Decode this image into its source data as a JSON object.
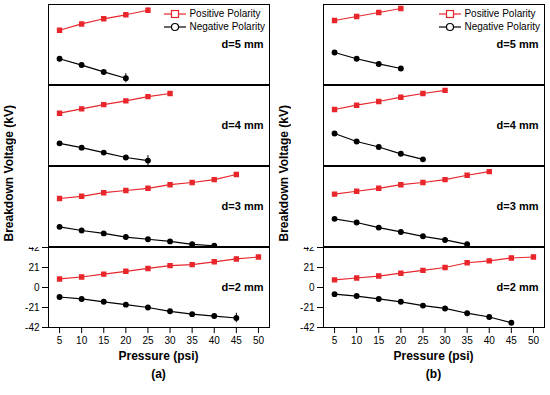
{
  "chart_data": [
    {
      "type": "line",
      "caption": "(a)",
      "x_label": "Pressure (psi)",
      "y_label": "Breakdown Voltage (kV)",
      "xlim": [
        2.5,
        52.5
      ],
      "xticks": [
        5,
        10,
        15,
        20,
        25,
        30,
        35,
        40,
        45,
        50
      ],
      "legend": "top-right",
      "panels": [
        {
          "annotation": "d=5 mm",
          "ylim": [
            -70,
            70
          ],
          "tick_labels": false,
          "series": [
            {
              "name": "Positive Polarity",
              "color": "#e8262b",
              "marker": "square",
              "x": [
                5,
                10,
                15,
                20,
                25
              ],
              "values": [
                25,
                36,
                45,
                52,
                60
              ],
              "errors": [
                null,
                null,
                null,
                4,
                4
              ]
            },
            {
              "name": "Negative Polarity",
              "color": "#000000",
              "marker": "circle",
              "x": [
                5,
                10,
                15,
                20
              ],
              "values": [
                -25,
                -36,
                -48,
                -59
              ],
              "errors": [
                null,
                null,
                null,
                8
              ]
            }
          ]
        },
        {
          "annotation": "d=4 mm",
          "ylim": [
            -65,
            65
          ],
          "tick_labels": false,
          "series": [
            {
              "name": "Positive Polarity",
              "color": "#e8262b",
              "marker": "square",
              "x": [
                5,
                10,
                15,
                20,
                25,
                30
              ],
              "values": [
                20,
                27,
                34,
                40,
                47,
                52
              ],
              "errors": [
                null,
                null,
                null,
                null,
                3,
                null
              ]
            },
            {
              "name": "Negative Polarity",
              "color": "#000000",
              "marker": "circle",
              "x": [
                5,
                10,
                15,
                20,
                25
              ],
              "values": [
                -29,
                -36,
                -44,
                -52,
                -57
              ],
              "errors": [
                null,
                null,
                null,
                null,
                8
              ]
            }
          ]
        },
        {
          "annotation": "d=3 mm",
          "ylim": [
            -55,
            55
          ],
          "tick_labels": false,
          "series": [
            {
              "name": "Positive Polarity",
              "color": "#e8262b",
              "marker": "square",
              "x": [
                5,
                10,
                15,
                20,
                25,
                30,
                35,
                40,
                45
              ],
              "values": [
                11,
                14,
                19,
                22,
                25,
                30,
                33,
                37,
                44
              ],
              "errors": [
                null,
                null,
                null,
                null,
                null,
                null,
                null,
                3,
                3
              ]
            },
            {
              "name": "Negative Polarity",
              "color": "#000000",
              "marker": "circle",
              "x": [
                5,
                10,
                15,
                20,
                25,
                30,
                35,
                40
              ],
              "values": [
                -28,
                -33,
                -37,
                -42,
                -45,
                -48,
                -52,
                -54
              ],
              "errors": [
                null,
                2,
                null,
                null,
                null,
                null,
                null,
                null
              ]
            }
          ]
        },
        {
          "annotation": "d=2 mm",
          "ylim": [
            -42,
            42
          ],
          "yticks": [
            42,
            21,
            0,
            -21,
            -42
          ],
          "series": [
            {
              "name": "Positive Polarity",
              "color": "#e8262b",
              "marker": "square",
              "x": [
                5,
                10,
                15,
                20,
                25,
                30,
                35,
                40,
                45,
                50
              ],
              "values": [
                9,
                11,
                14,
                17,
                20,
                23,
                24,
                27,
                30,
                32
              ],
              "errors": [
                null,
                null,
                null,
                null,
                null,
                null,
                null,
                null,
                2,
                1
              ]
            },
            {
              "name": "Negative Polarity",
              "color": "#000000",
              "marker": "circle",
              "x": [
                5,
                10,
                15,
                20,
                25,
                30,
                35,
                40,
                45
              ],
              "values": [
                -10,
                -12,
                -15,
                -18,
                -21,
                -25,
                -28,
                -30,
                -32
              ],
              "errors": [
                null,
                null,
                null,
                2,
                null,
                2,
                null,
                2,
                5
              ]
            }
          ]
        }
      ]
    },
    {
      "type": "line",
      "caption": "(b)",
      "x_label": "Pressure (psi)",
      "y_label": "Breakdown Voltage (kV)",
      "xlim": [
        2.5,
        52.5
      ],
      "xticks": [
        5,
        10,
        15,
        20,
        25,
        30,
        35,
        40,
        45,
        50
      ],
      "legend": "top-right",
      "panels": [
        {
          "annotation": "d=5 mm",
          "ylim": [
            -70,
            70
          ],
          "tick_labels": false,
          "series": [
            {
              "name": "Positive Polarity",
              "color": "#e8262b",
              "marker": "square",
              "x": [
                5,
                10,
                15,
                20
              ],
              "values": [
                42,
                49,
                56,
                63
              ],
              "errors": [
                null,
                null,
                null,
                null
              ]
            },
            {
              "name": "Negative Polarity",
              "color": "#000000",
              "marker": "circle",
              "x": [
                5,
                10,
                15,
                20
              ],
              "values": [
                -14,
                -25,
                -34,
                -42
              ],
              "errors": [
                null,
                null,
                null,
                null
              ]
            }
          ]
        },
        {
          "annotation": "d=4 mm",
          "ylim": [
            -65,
            65
          ],
          "tick_labels": false,
          "series": [
            {
              "name": "Positive Polarity",
              "color": "#e8262b",
              "marker": "square",
              "x": [
                5,
                10,
                15,
                20,
                25,
                30
              ],
              "values": [
                26,
                33,
                39,
                46,
                52,
                57
              ],
              "errors": [
                null,
                null,
                null,
                null,
                3,
                null
              ]
            },
            {
              "name": "Negative Polarity",
              "color": "#000000",
              "marker": "circle",
              "x": [
                5,
                10,
                15,
                20,
                25
              ],
              "values": [
                -13,
                -26,
                -35,
                -46,
                -55
              ],
              "errors": [
                null,
                null,
                null,
                null,
                null
              ]
            }
          ]
        },
        {
          "annotation": "d=3 mm",
          "ylim": [
            -55,
            55
          ],
          "tick_labels": false,
          "series": [
            {
              "name": "Positive Polarity",
              "color": "#e8262b",
              "marker": "square",
              "x": [
                5,
                10,
                15,
                20,
                25,
                30,
                35,
                40
              ],
              "values": [
                17,
                21,
                25,
                30,
                33,
                37,
                43,
                48
              ],
              "errors": [
                null,
                null,
                null,
                null,
                null,
                null,
                null,
                null
              ]
            },
            {
              "name": "Negative Polarity",
              "color": "#000000",
              "marker": "circle",
              "x": [
                5,
                10,
                15,
                20,
                25,
                30,
                35
              ],
              "values": [
                -17,
                -22,
                -29,
                -35,
                -41,
                -46,
                -52
              ],
              "errors": [
                null,
                null,
                null,
                null,
                null,
                null,
                null
              ]
            }
          ]
        },
        {
          "annotation": "d=2 mm",
          "ylim": [
            -42,
            42
          ],
          "yticks": [
            42,
            21,
            0,
            -21,
            -42
          ],
          "series": [
            {
              "name": "Positive Polarity",
              "color": "#e8262b",
              "marker": "square",
              "x": [
                5,
                10,
                15,
                20,
                25,
                30,
                35,
                40,
                45,
                50
              ],
              "values": [
                8,
                10,
                12,
                15,
                18,
                21,
                26,
                28,
                31,
                32
              ],
              "errors": [
                null,
                null,
                null,
                null,
                null,
                null,
                null,
                null,
                2,
                2
              ]
            },
            {
              "name": "Negative Polarity",
              "color": "#000000",
              "marker": "circle",
              "x": [
                5,
                10,
                15,
                20,
                25,
                30,
                35,
                40,
                45
              ],
              "values": [
                -7,
                -9,
                -12,
                -15,
                -19,
                -22,
                -27,
                -31,
                -37
              ],
              "errors": [
                null,
                null,
                null,
                null,
                null,
                2,
                null,
                null,
                2
              ]
            }
          ]
        }
      ]
    }
  ]
}
